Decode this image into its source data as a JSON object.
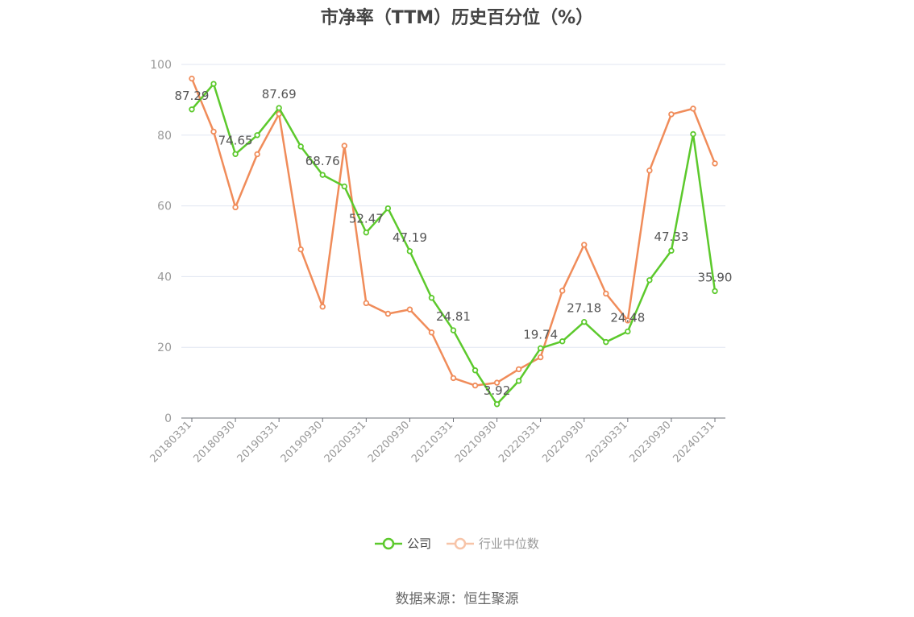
{
  "title": "市净率（TTM）历史百分位（%）",
  "source": "数据来源：恒生聚源",
  "colors": {
    "company": "#5cc92c",
    "industry": "#f08c5a",
    "grid": "#e0e6f1",
    "axis": "#6e7079",
    "label": "#999999"
  },
  "chart_data": {
    "type": "line",
    "title": "市净率（TTM）历史百分位（%）",
    "xlabel": "",
    "ylabel": "",
    "ylim": [
      0,
      100
    ],
    "yticks": [
      0,
      20,
      40,
      60,
      80,
      100
    ],
    "grid": true,
    "legend_position": "bottom",
    "x": [
      "20180331",
      "20180630",
      "20180930",
      "20181231",
      "20190331",
      "20190630",
      "20190930",
      "20191231",
      "20200331",
      "20200630",
      "20200930",
      "20201231",
      "20210331",
      "20210630",
      "20210930",
      "20211231",
      "20220331",
      "20220630",
      "20220930",
      "20221231",
      "20230331",
      "20230630",
      "20230930",
      "20231231",
      "20240131"
    ],
    "xtick_labels": [
      "20180331",
      "20180930",
      "20190331",
      "20190930",
      "20200331",
      "20200930",
      "20210331",
      "20210930",
      "20220331",
      "20220930",
      "20230331",
      "20230930",
      "20240131"
    ],
    "series": [
      {
        "name": "公司",
        "values": [
          87.29,
          94.5,
          74.65,
          80.0,
          87.69,
          76.8,
          68.76,
          65.5,
          52.47,
          59.3,
          47.19,
          34.0,
          24.81,
          13.5,
          3.92,
          10.5,
          19.74,
          21.7,
          27.18,
          21.5,
          24.48,
          39.0,
          47.33,
          80.3,
          35.9
        ],
        "labels": [
          "87.29",
          "",
          "74.65",
          "",
          "87.69",
          "",
          "68.76",
          "",
          "52.47",
          "",
          "47.19",
          "",
          "24.81",
          "",
          "3.92",
          "",
          "19.74",
          "",
          "27.18",
          "",
          "24.48",
          "",
          "47.33",
          "",
          "35.90"
        ]
      },
      {
        "name": "行业中位数",
        "values": [
          96.0,
          81.0,
          59.6,
          74.6,
          86.0,
          47.7,
          31.5,
          77.0,
          32.5,
          29.5,
          30.7,
          24.2,
          11.3,
          9.2,
          10.0,
          13.8,
          17.2,
          36.0,
          49.0,
          35.2,
          27.6,
          70.0,
          85.9,
          87.5,
          72.0
        ]
      }
    ]
  }
}
